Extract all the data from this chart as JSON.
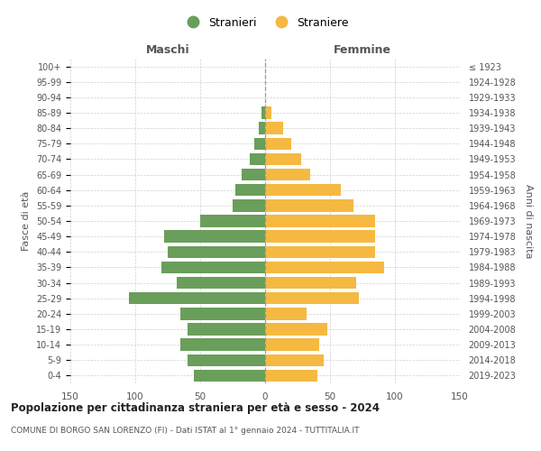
{
  "age_groups": [
    "0-4",
    "5-9",
    "10-14",
    "15-19",
    "20-24",
    "25-29",
    "30-34",
    "35-39",
    "40-44",
    "45-49",
    "50-54",
    "55-59",
    "60-64",
    "65-69",
    "70-74",
    "75-79",
    "80-84",
    "85-89",
    "90-94",
    "95-99",
    "100+"
  ],
  "birth_years": [
    "2019-2023",
    "2014-2018",
    "2009-2013",
    "2004-2008",
    "1999-2003",
    "1994-1998",
    "1989-1993",
    "1984-1988",
    "1979-1983",
    "1974-1978",
    "1969-1973",
    "1964-1968",
    "1959-1963",
    "1954-1958",
    "1949-1953",
    "1944-1948",
    "1939-1943",
    "1934-1938",
    "1929-1933",
    "1924-1928",
    "≤ 1923"
  ],
  "maschi": [
    55,
    60,
    65,
    60,
    65,
    105,
    68,
    80,
    75,
    78,
    50,
    25,
    23,
    18,
    12,
    8,
    5,
    3,
    0,
    0,
    0
  ],
  "femmine": [
    40,
    45,
    42,
    48,
    32,
    72,
    70,
    92,
    85,
    85,
    85,
    68,
    58,
    35,
    28,
    20,
    14,
    5,
    0,
    0,
    0
  ],
  "color_maschi": "#6a9e5b",
  "color_femmine": "#f5b942",
  "title": "Popolazione per cittadinanza straniera per età e sesso - 2024",
  "subtitle": "COMUNE DI BORGO SAN LORENZO (FI) - Dati ISTAT al 1° gennaio 2024 - TUTTITALIA.IT",
  "label_maschi": "Maschi",
  "label_femmine": "Femmine",
  "ylabel_left": "Fasce di età",
  "ylabel_right": "Anni di nascita",
  "legend_maschi": "Stranieri",
  "legend_femmine": "Straniere",
  "xlim": 150,
  "background_color": "#ffffff",
  "grid_color": "#cccccc"
}
